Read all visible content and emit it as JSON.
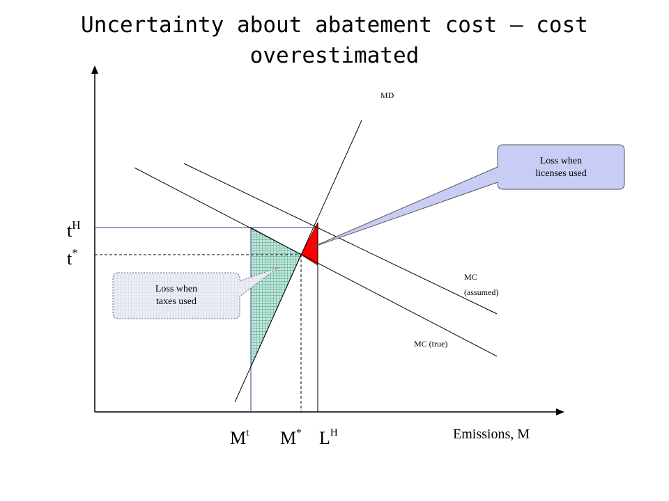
{
  "title": {
    "line1": "Uncertainty about abatement cost – cost",
    "line2": "overestimated"
  },
  "curve_labels": {
    "md": "MD",
    "mc_assumed_line1": "MC",
    "mc_assumed_line2": "(assumed)",
    "mc_true": "MC (true)"
  },
  "axis": {
    "x_label": "Emissions, M"
  },
  "y_ticks": {
    "t_high_base": "t",
    "t_high_sup": "H",
    "t_star_base": "t",
    "t_star_sup": "*"
  },
  "x_ticks": {
    "m_t_base": "M",
    "m_t_sup": "t",
    "m_star_base": "M",
    "m_star_sup": "*",
    "l_high_base": "L",
    "l_high_sup": "H"
  },
  "callouts": {
    "licenses_line1": "Loss when",
    "licenses_line2": "licenses used",
    "taxes_line1": "Loss when",
    "taxes_line2": "taxes used"
  },
  "colors": {
    "tax_loss_fill": "#bfe9dc",
    "license_loss_fill": "#ff0000",
    "callout_licenses_fill": "#c9ccf5",
    "callout_taxes_fill": "#e6e8f2",
    "guide_line": "#3a3a8c"
  }
}
